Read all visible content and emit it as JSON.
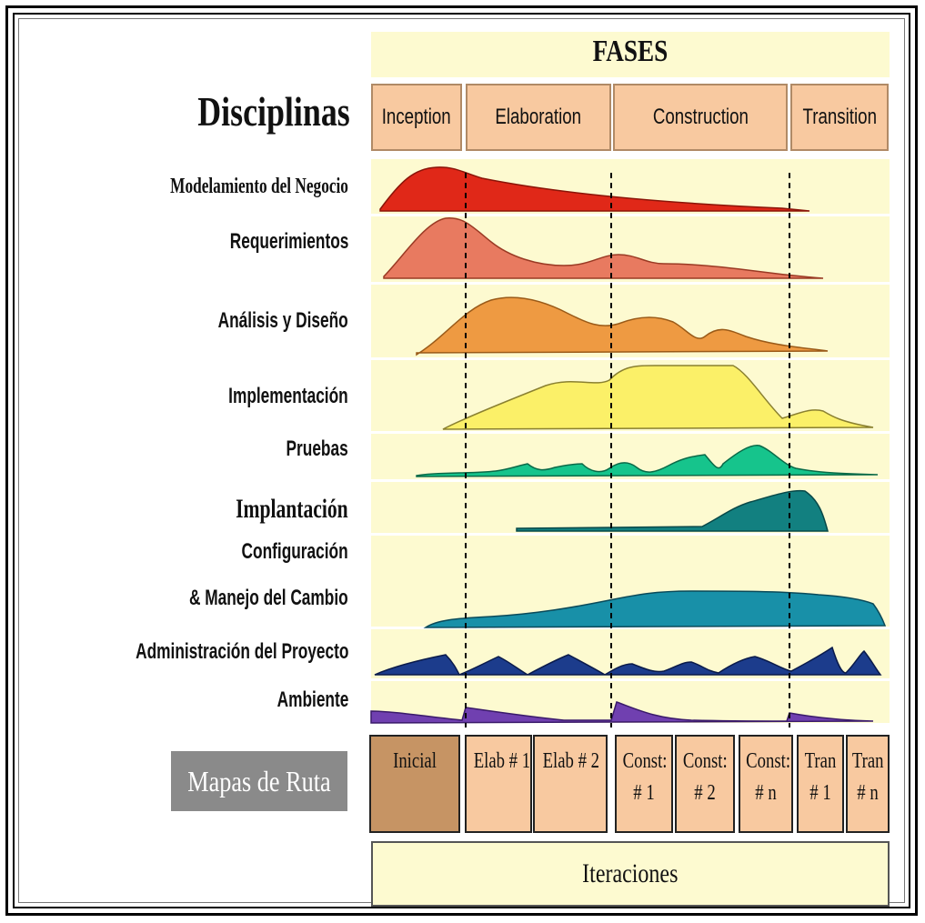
{
  "fases_title": "FASES",
  "disciplinas_heading": "Disciplinas",
  "phases": [
    {
      "label": "Inception"
    },
    {
      "label": "Elaboration"
    },
    {
      "label": "Construction"
    },
    {
      "label": "Transition"
    }
  ],
  "disciplines": [
    {
      "label": "Modelamiento del Negocio",
      "color": "#e02818"
    },
    {
      "label": "Requerimientos",
      "color": "#e87a60"
    },
    {
      "label": "Análisis y Diseño",
      "color": "#ee9a42"
    },
    {
      "label": "Implementación",
      "color": "#fbf068"
    },
    {
      "label": "Pruebas",
      "color": "#16c48c"
    },
    {
      "label": "Implantación",
      "color": "#128080"
    },
    {
      "label": "Configuración",
      "label2": "& Manejo del Cambio",
      "color": "#1890a8"
    },
    {
      "label": "Administración del Proyecto",
      "color": "#1c3c8c"
    },
    {
      "label": "Ambiente",
      "color": "#7040b0"
    }
  ],
  "mapas_label": "Mapas de Ruta",
  "iterations": [
    {
      "line1": "Inicial",
      "line2": ""
    },
    {
      "line1": "Elab # 1",
      "line2": ""
    },
    {
      "line1": "Elab # 2",
      "line2": ""
    },
    {
      "line1": "Const:",
      "line2": "# 1"
    },
    {
      "line1": "Const:",
      "line2": "# 2"
    },
    {
      "line1": "Const:",
      "line2": "# n"
    },
    {
      "line1": "Tran",
      "line2": "# 1"
    },
    {
      "line1": "Tran",
      "line2": "# n"
    }
  ],
  "iteraciones_label": "Iteraciones",
  "colors": {
    "band_bg": "#fdfad0",
    "phase_box": "#f8c9a0",
    "iteration_first": "#c69464",
    "mapas_bg": "#8a8a8a"
  }
}
